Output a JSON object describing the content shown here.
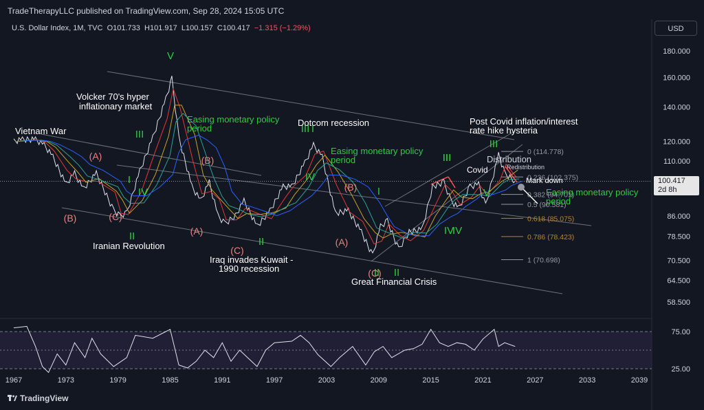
{
  "header": {
    "publisher": "TradeTherapyLLC published on TradingView.com, Sep 28, 2024 15:05 UTC",
    "symbol": "U.S. Dollar Index, 1M, TVC",
    "open_label": "O",
    "open": "101.733",
    "high_label": "H",
    "high": "101.917",
    "low_label": "L",
    "low": "100.157",
    "close_label": "C",
    "close": "100.417",
    "change": "−1.315 (−1.29%)",
    "currency": "USD"
  },
  "last_price": {
    "value": "100.417",
    "countdown": "2d 8h"
  },
  "footer": {
    "brand": "TradingView"
  },
  "colors": {
    "background": "#131722",
    "text": "#d1d4dc",
    "green_label": "#2ecc40",
    "red_label": "#f08080",
    "fib_orange": "#b8862b",
    "ma_red": "#e53935",
    "ma_blue": "#2962ff",
    "ma_yellow": "#c9a227",
    "ma_green": "#26a69a"
  },
  "chart_data": {
    "type": "line",
    "title": "",
    "price_axis_ticks": [
      "180.000",
      "160.000",
      "140.000",
      "120.000",
      "110.000",
      "100.417",
      "86.000",
      "78.500",
      "70.500",
      "64.500",
      "58.500"
    ],
    "time_axis_ticks": [
      "1967",
      "1973",
      "1979",
      "1985",
      "1991",
      "1997",
      "2003",
      "2009",
      "2015",
      "2021",
      "2027",
      "2033",
      "2039"
    ],
    "rsi_axis_ticks": [
      "75.00",
      "25.00"
    ],
    "series": [
      {
        "name": "",
        "x": [
          1967,
          1968,
          1969.5,
          1970.5,
          1971.5,
          1973,
          1974,
          1975,
          1976.5,
          1978.5,
          1979.2,
          1980,
          1981.5,
          1983,
          1984.5,
          1985.2,
          1986,
          1987.5,
          1988.5,
          1989.5,
          1990.5,
          1991.3,
          1992.5,
          1993.5,
          1995,
          1996.5,
          1998,
          1999,
          2000.5,
          2001.5,
          2002.5,
          2004,
          2005.5,
          2007,
          2008.3,
          2009.2,
          2010,
          2011.3,
          2012.5,
          2014,
          2015.2,
          2016.5,
          2017.3,
          2018.2,
          2019.5,
          2020.5,
          2021.3,
          2022.8,
          2023.5,
          2024.7
        ],
        "values": [
          120,
          121,
          121,
          118,
          112,
          99,
          104,
          97,
          104,
          88,
          86,
          87,
          105,
          122,
          145,
          159,
          122,
          98,
          92,
          100,
          86,
          83,
          86,
          92,
          82,
          88,
          98,
          98,
          109,
          118,
          112,
          87,
          88,
          80,
          72,
          82,
          84,
          74,
          80,
          81,
          98,
          100,
          92,
          89,
          98,
          99,
          90,
          113,
          104,
          100.4
        ]
      }
    ],
    "labels": {
      "wave_green": [
        "V",
        "III",
        "I",
        "IV",
        "II",
        "III",
        "IV",
        "I",
        "II",
        "III",
        "IV",
        "II",
        "I",
        "III",
        "V",
        "IV",
        "II",
        "III"
      ],
      "wave_red": [
        "(A)",
        "(B)",
        "(C)",
        "(B)",
        "(A)",
        "(C)",
        "(A)",
        "(B)",
        "(C)"
      ],
      "events": [
        "Vietnam War",
        "Volcker 70's hyper",
        "inflationary market",
        "Iranian Revolution",
        "Iraq invades Kuwait -",
        "1990 recession",
        "Dotcom recession",
        "Great Financial Crisis",
        "Post Covid inflation/interest",
        "rate hike hysteria",
        "Covid",
        "Distribution",
        "Redistribution",
        "Mark down"
      ],
      "easing": [
        "Easing monetary policy",
        "period"
      ]
    },
    "fib_levels": [
      {
        "ratio": "0",
        "price": "114.778"
      },
      {
        "ratio": "0.236",
        "price": "102.375"
      },
      {
        "ratio": "0.382",
        "price": "94.701"
      },
      {
        "ratio": "0.5",
        "price": "90.581"
      },
      {
        "ratio": "0.618",
        "price": "85.075"
      },
      {
        "ratio": "0.786",
        "price": "78.423"
      },
      {
        "ratio": "1",
        "price": "70.698"
      }
    ],
    "rsi": {
      "x": [
        1967,
        1968.5,
        1969.5,
        1970.3,
        1971,
        1972,
        1973,
        1974,
        1975.2,
        1976,
        1977,
        1978.5,
        1980,
        1981,
        1983,
        1984.5,
        1985,
        1986,
        1987,
        1988,
        1989,
        1990,
        1991,
        1992,
        1993,
        1995,
        1996,
        1997,
        1999,
        2000,
        2001,
        2002,
        2003.5,
        2004.5,
        2006,
        2007.5,
        2008.5,
        2009.5,
        2010.5,
        2012,
        2013,
        2014,
        2015,
        2016,
        2017,
        2018,
        2019,
        2020,
        2021,
        2022.3,
        2022.8,
        2023.5,
        2024.7
      ],
      "values": [
        80,
        82,
        55,
        28,
        20,
        45,
        30,
        60,
        40,
        66,
        45,
        28,
        40,
        70,
        66,
        75,
        78,
        30,
        26,
        35,
        50,
        40,
        60,
        35,
        50,
        28,
        50,
        60,
        62,
        70,
        60,
        44,
        28,
        40,
        55,
        30,
        48,
        55,
        40,
        50,
        52,
        58,
        78,
        60,
        55,
        60,
        58,
        50,
        65,
        78,
        55,
        60,
        55
      ]
    }
  }
}
